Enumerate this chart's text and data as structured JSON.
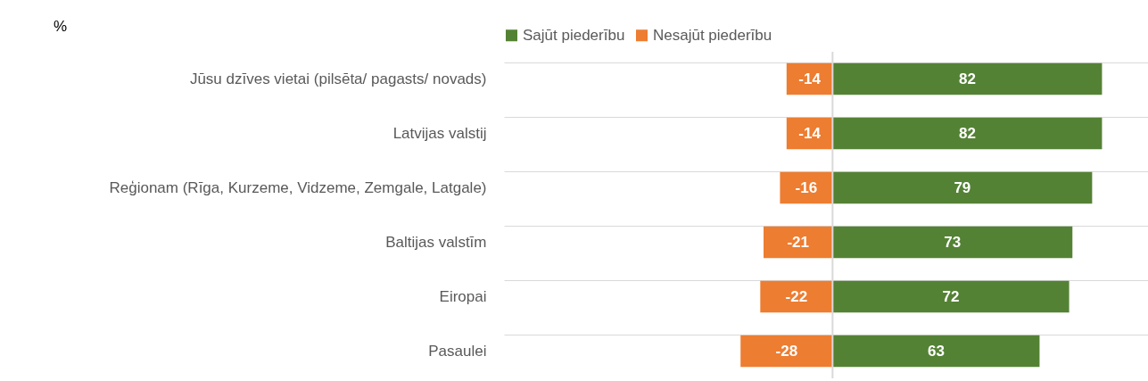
{
  "chart_data": {
    "type": "bar",
    "orientation": "horizontal",
    "title": "%",
    "categories": [
      "Jūsu dzīves vietai (pilsēta/ pagasts/ novads)",
      "Latvijas valstij",
      "Reģionam (Rīga, Kurzeme, Vidzeme, Zemgale, Latgale)",
      "Baltijas valstīm",
      "Eiropai",
      "Pasaulei"
    ],
    "series": [
      {
        "name": "Sajūt piederību",
        "color": "#548235",
        "values": [
          82,
          82,
          79,
          73,
          72,
          63
        ]
      },
      {
        "name": "Nesajūt piederību",
        "color": "#ed7d31",
        "values": [
          -14,
          -14,
          -16,
          -21,
          -22,
          -28
        ]
      }
    ],
    "xlim": [
      -100,
      96
    ],
    "ref_lines": [
      {
        "axis": "x",
        "value": 0,
        "color": "#d9d9d9"
      }
    ],
    "stacked": true,
    "data_labels": true,
    "grid": "y",
    "legend": "top",
    "tick_labels": "y"
  }
}
